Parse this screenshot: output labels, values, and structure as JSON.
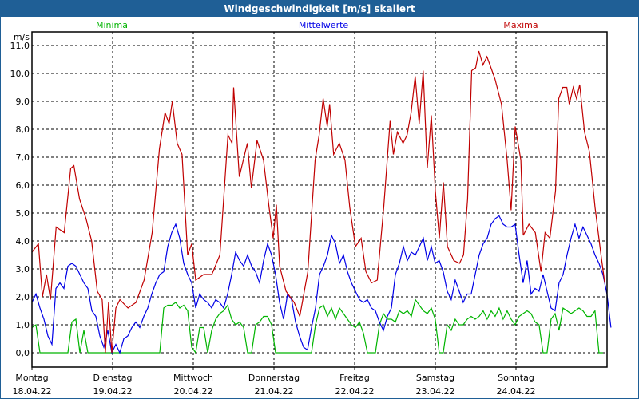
{
  "window": {
    "title": "Windgeschwindigkeit [m/s] skaliert"
  },
  "chart_data": {
    "type": "line",
    "title": "Windgeschwindigkeit [m/s] skaliert",
    "ylabel": "m/s",
    "ylim": [
      0,
      11
    ],
    "yticks": [
      "0,0",
      "1,0",
      "2,0",
      "3,0",
      "4,0",
      "5,0",
      "6,0",
      "7,0",
      "8,0",
      "9,0",
      "10,0",
      "11,0"
    ],
    "xlim_days": [
      0,
      7.13
    ],
    "grid": true,
    "days": [
      {
        "name": "Montag",
        "date": "18.04.22"
      },
      {
        "name": "Dienstag",
        "date": "19.04.22"
      },
      {
        "name": "Mittwoch",
        "date": "20.04.22"
      },
      {
        "name": "Donnerstag",
        "date": "21.04.22"
      },
      {
        "name": "Freitag",
        "date": "22.04.22"
      },
      {
        "name": "Samstag",
        "date": "23.04.22"
      },
      {
        "name": "Sonntag",
        "date": "24.04.22"
      }
    ],
    "series": [
      {
        "name": "Minima",
        "color": "#00b400",
        "step_days": 0.0495,
        "values": [
          0.9,
          1.0,
          0,
          0,
          0,
          0,
          0,
          0,
          0,
          0,
          1.1,
          1.2,
          0,
          0.8,
          0,
          0,
          0,
          0,
          0,
          0,
          0,
          0,
          0,
          0,
          0,
          0,
          0,
          0,
          0,
          0,
          0,
          0,
          0,
          1.6,
          1.7,
          1.7,
          1.8,
          1.6,
          1.7,
          1.5,
          0.2,
          0,
          0.9,
          0.9,
          0,
          0.8,
          1.2,
          1.4,
          1.5,
          1.7,
          1.2,
          1.0,
          1.1,
          0.9,
          0,
          0,
          1.0,
          1.1,
          1.3,
          1.3,
          1.0,
          0,
          0,
          0,
          0,
          0,
          0,
          0,
          0,
          0,
          0,
          1.0,
          1.6,
          1.7,
          1.3,
          1.6,
          1.2,
          1.6,
          1.4,
          1.2,
          1.0,
          0.9,
          1.1,
          0.7,
          0,
          0,
          0,
          1.0,
          1.4,
          1.2,
          1.2,
          1.1,
          1.5,
          1.4,
          1.5,
          1.3,
          1.9,
          1.7,
          1.5,
          1.4,
          1.6,
          1.2,
          0,
          0,
          1.0,
          0.8,
          1.2,
          1.0,
          1.0,
          1.2,
          1.3,
          1.2,
          1.3,
          1.5,
          1.2,
          1.5,
          1.3,
          1.6,
          1.2,
          1.5,
          1.2,
          1.0,
          1.3,
          1.4,
          1.5,
          1.4,
          1.1,
          1.0,
          0,
          0,
          1.2,
          1.4,
          0.8,
          1.6,
          1.5,
          1.4,
          1.5,
          1.6,
          1.5,
          1.3,
          1.3,
          1.5,
          0,
          0
        ]
      },
      {
        "name": "Mittelwerte",
        "color": "#0000e6",
        "step_days": 0.0495,
        "values": [
          1.8,
          2.1,
          1.6,
          1.2,
          0.6,
          0.3,
          2.3,
          2.5,
          2.3,
          3.1,
          3.2,
          3.1,
          2.8,
          2.5,
          2.3,
          1.5,
          1.3,
          0.6,
          0.2,
          0.8,
          0,
          0.3,
          0,
          0.5,
          0.6,
          0.9,
          1.1,
          0.9,
          1.3,
          1.6,
          2.1,
          2.5,
          2.8,
          2.9,
          3.8,
          4.3,
          4.6,
          4.1,
          3.2,
          2.8,
          2.5,
          1.6,
          2.1,
          1.9,
          1.8,
          1.6,
          1.9,
          1.8,
          1.6,
          2.1,
          2.8,
          3.6,
          3.3,
          3.1,
          3.5,
          3.1,
          2.9,
          2.5,
          3.3,
          3.9,
          3.5,
          2.8,
          1.8,
          1.2,
          2.1,
          1.9,
          1.1,
          0.6,
          0.2,
          0.1,
          0.9,
          1.6,
          2.8,
          3.1,
          3.5,
          4.2,
          3.9,
          3.2,
          3.5,
          2.9,
          2.5,
          2.2,
          1.9,
          1.8,
          1.9,
          1.6,
          1.5,
          1.1,
          0.8,
          1.3,
          1.6,
          2.8,
          3.2,
          3.8,
          3.3,
          3.6,
          3.5,
          3.8,
          4.1,
          3.3,
          3.8,
          3.2,
          3.3,
          2.9,
          2.2,
          1.9,
          2.6,
          2.2,
          1.8,
          2.1,
          2.1,
          2.8,
          3.5,
          3.9,
          4.1,
          4.6,
          4.8,
          4.9,
          4.6,
          4.5,
          4.5,
          4.6,
          3.5,
          2.5,
          3.3,
          2.1,
          2.3,
          2.2,
          2.8,
          2.2,
          1.6,
          1.5,
          2.5,
          2.8,
          3.5,
          4.1,
          4.6,
          4.1,
          4.5,
          4.2,
          3.9,
          3.5,
          3.2,
          2.8,
          2.1,
          0.9
        ]
      },
      {
        "name": "Maxima",
        "color": "#c00000",
        "t_days": [
          0,
          0.08,
          0.13,
          0.18,
          0.23,
          0.3,
          0.4,
          0.48,
          0.52,
          0.59,
          0.67,
          0.74,
          0.81,
          0.87,
          0.91,
          0.95,
          0.99,
          1.04,
          1.09,
          1.19,
          1.29,
          1.39,
          1.49,
          1.58,
          1.65,
          1.7,
          1.74,
          1.8,
          1.86,
          1.93,
          1.98,
          2.03,
          2.13,
          2.23,
          2.33,
          2.43,
          2.48,
          2.5,
          2.57,
          2.62,
          2.67,
          2.72,
          2.79,
          2.87,
          2.94,
          2.99,
          3.03,
          3.07,
          3.15,
          3.25,
          3.32,
          3.42,
          3.51,
          3.56,
          3.61,
          3.66,
          3.69,
          3.74,
          3.81,
          3.88,
          3.94,
          4.01,
          4.08,
          4.14,
          4.21,
          4.28,
          4.36,
          4.44,
          4.48,
          4.53,
          4.6,
          4.65,
          4.7,
          4.75,
          4.8,
          4.85,
          4.9,
          4.95,
          5.0,
          5.05,
          5.1,
          5.15,
          5.23,
          5.3,
          5.35,
          5.4,
          5.45,
          5.5,
          5.54,
          5.59,
          5.64,
          5.69,
          5.74,
          5.82,
          5.89,
          5.94,
          5.99,
          6.06,
          6.09,
          6.16,
          6.24,
          6.31,
          6.36,
          6.42,
          6.49,
          6.53,
          6.58,
          6.63,
          6.66,
          6.71,
          6.75,
          6.79,
          6.85,
          6.91,
          6.98,
          7.05,
          7.1
        ],
        "values": [
          3.6,
          3.9,
          2.0,
          2.8,
          1.9,
          4.5,
          4.3,
          6.6,
          6.7,
          5.5,
          4.8,
          4.0,
          2.2,
          1.9,
          0,
          1.8,
          0,
          1.6,
          1.9,
          1.6,
          1.8,
          2.6,
          4.3,
          7.3,
          8.6,
          8.2,
          9.0,
          7.5,
          7.1,
          3.5,
          3.9,
          2.6,
          2.8,
          2.8,
          3.5,
          7.8,
          7.5,
          9.5,
          6.3,
          6.9,
          7.5,
          5.9,
          7.6,
          6.9,
          5.2,
          4.1,
          5.3,
          3.1,
          2.2,
          1.8,
          1.3,
          2.9,
          6.9,
          7.8,
          9.1,
          8.1,
          8.9,
          7.1,
          7.5,
          6.9,
          5.2,
          3.8,
          4.1,
          2.9,
          2.5,
          2.6,
          5.2,
          8.3,
          7.1,
          7.9,
          7.5,
          7.8,
          8.6,
          9.9,
          8.2,
          10.1,
          6.6,
          8.5,
          5.8,
          4.1,
          6.1,
          3.8,
          3.3,
          3.2,
          3.5,
          5.5,
          10.1,
          10.2,
          10.8,
          10.3,
          10.6,
          10.2,
          9.8,
          8.9,
          6.9,
          5.1,
          8.1,
          6.9,
          4.2,
          4.6,
          4.3,
          2.9,
          4.3,
          4.1,
          5.8,
          9.1,
          9.5,
          9.5,
          8.9,
          9.5,
          9.1,
          9.6,
          7.9,
          7.2,
          5.2,
          3.6,
          2.5
        ]
      }
    ]
  }
}
